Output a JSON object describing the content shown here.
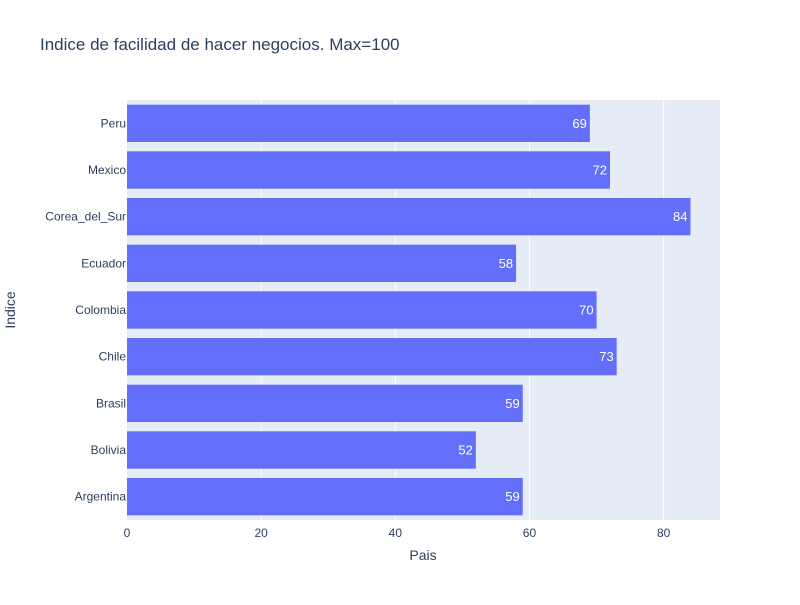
{
  "chart_data": {
    "type": "bar",
    "orientation": "horizontal",
    "title": "Indice de facilidad de hacer negocios. Max=100",
    "xlabel": "Pais",
    "ylabel": "Indice",
    "categories": [
      "Argentina",
      "Bolivia",
      "Brasil",
      "Chile",
      "Colombia",
      "Ecuador",
      "Corea_del_Sur",
      "Mexico",
      "Peru"
    ],
    "values": [
      59,
      52,
      59,
      73,
      70,
      58,
      84,
      72,
      69
    ],
    "xlim": [
      0,
      88.4
    ],
    "xticks": [
      0,
      20,
      40,
      60,
      80
    ],
    "grid": true,
    "bar_color": "#636efa",
    "plot_background": "#e5ecf6",
    "gridline_color": "#ffffff",
    "text_color": "#2a3f5f"
  }
}
